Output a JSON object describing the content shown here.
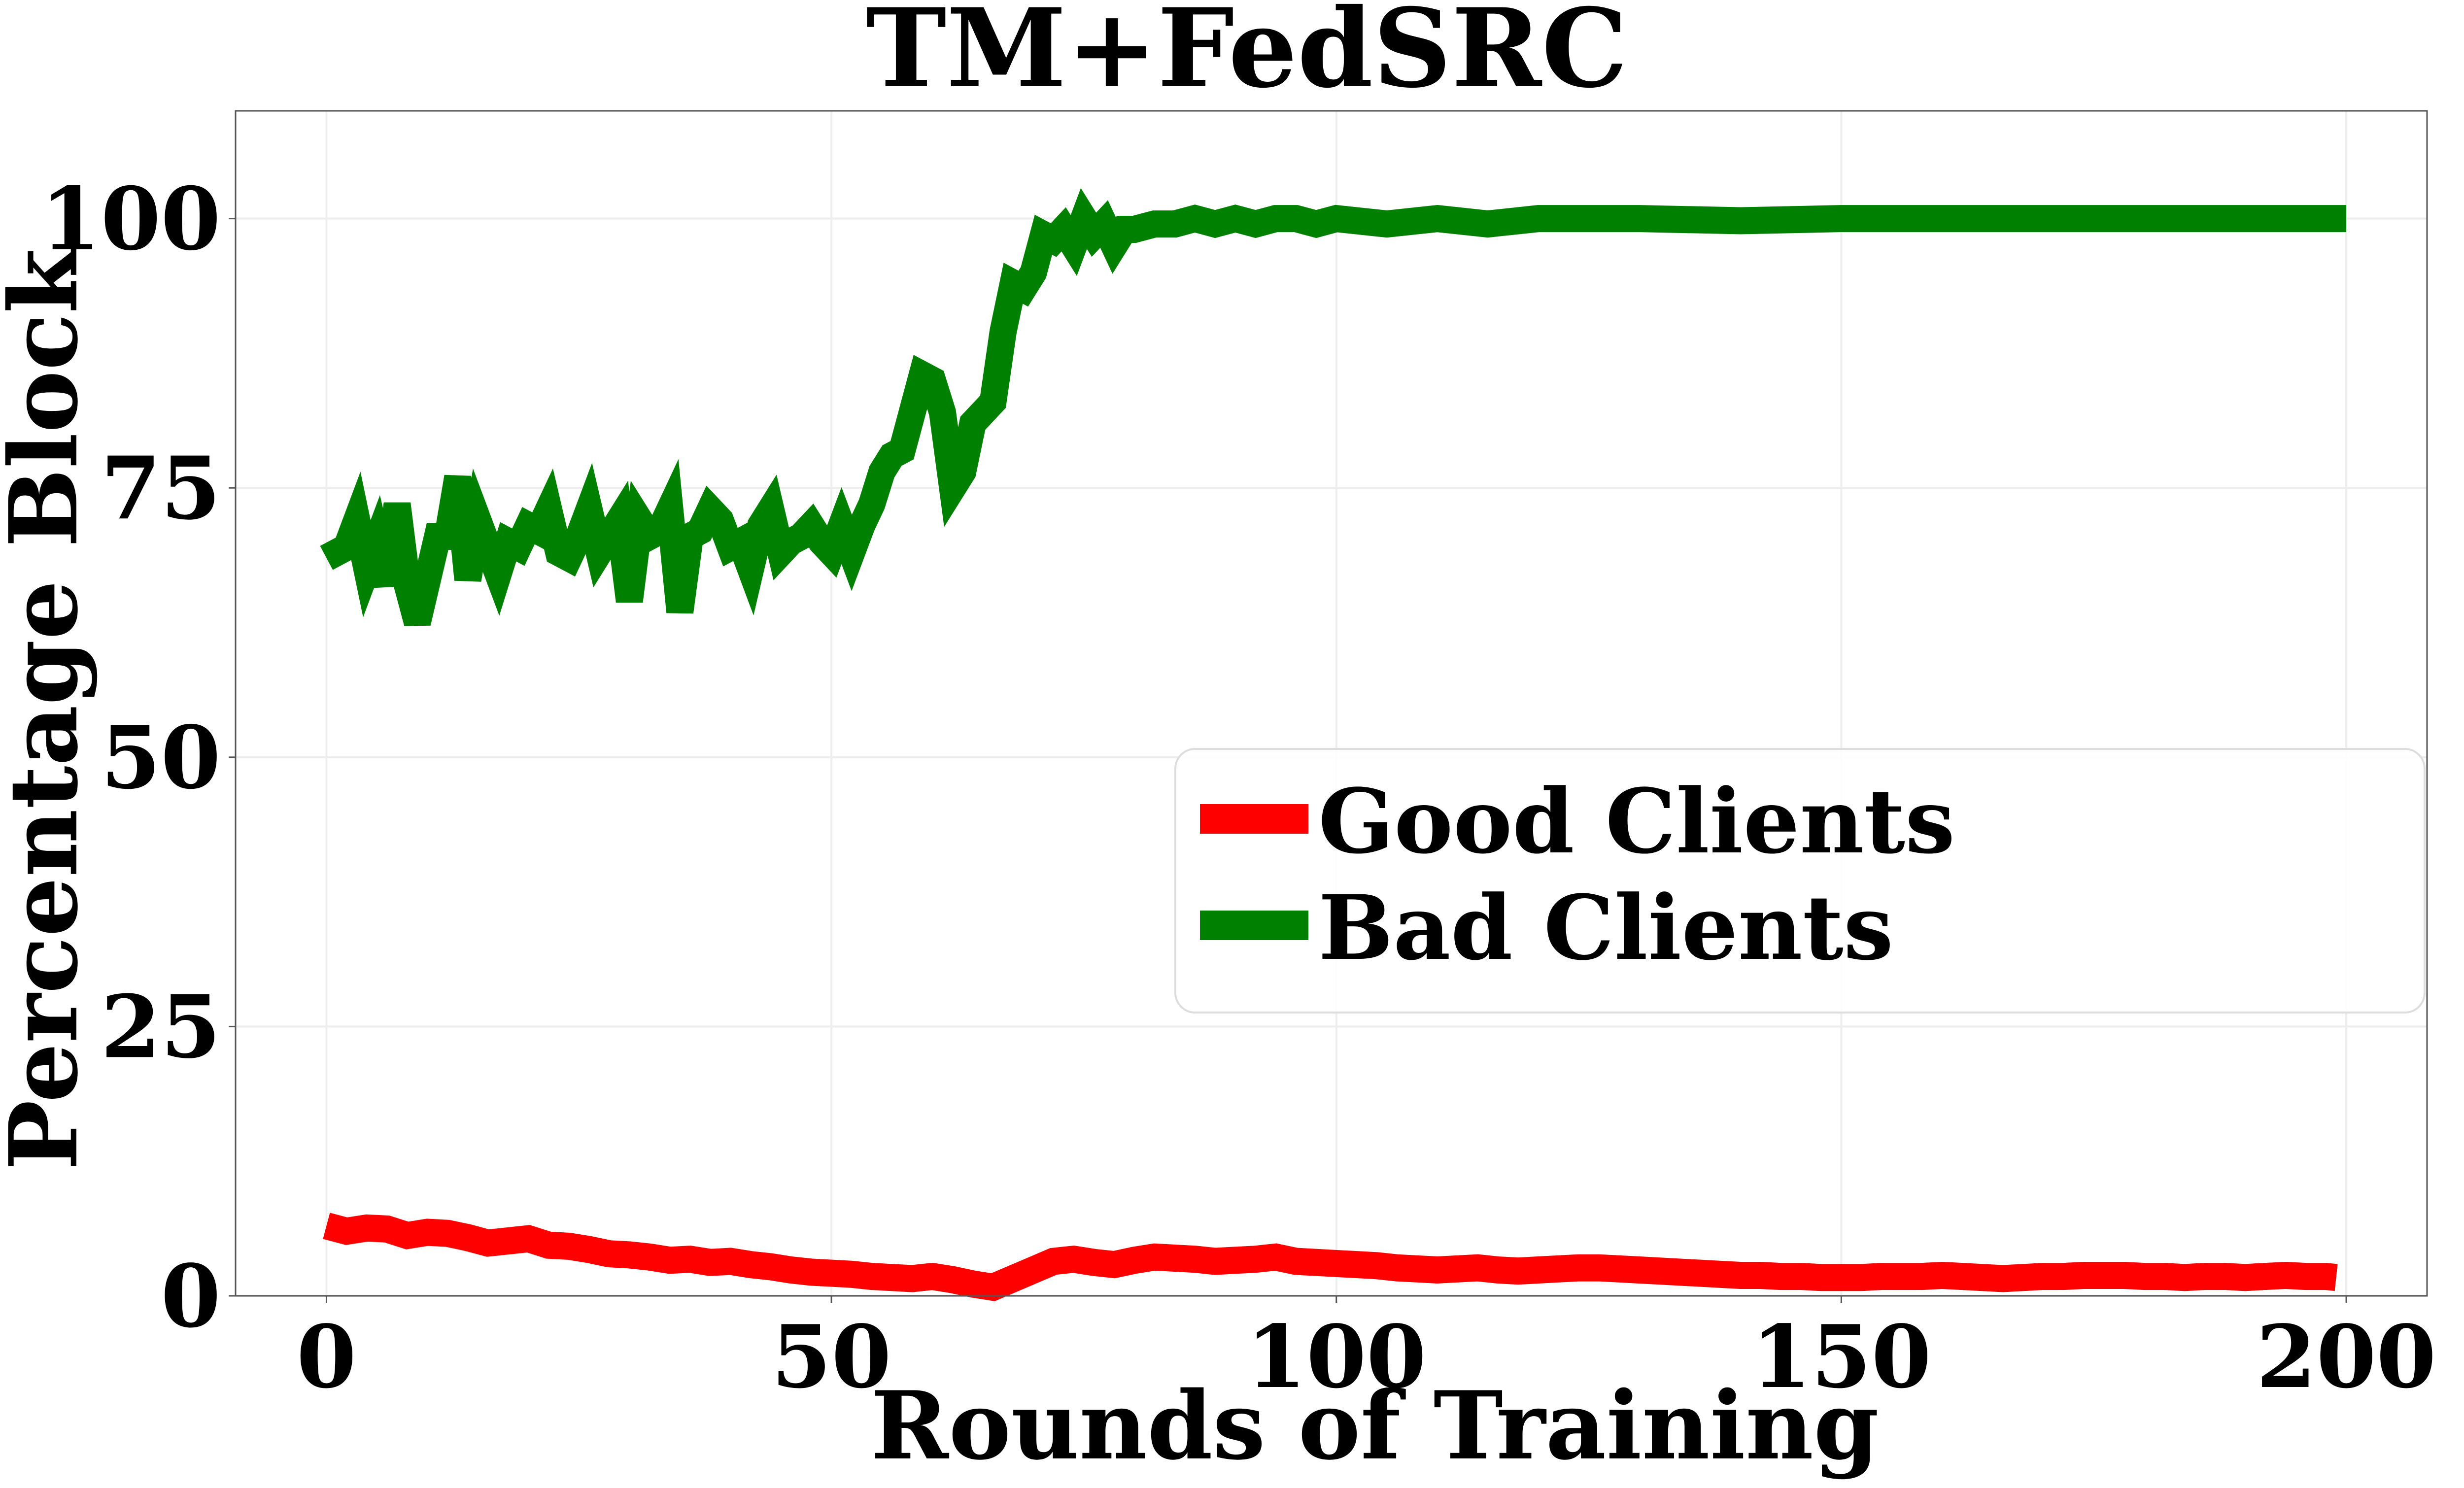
{
  "chart_data": {
    "type": "line",
    "title": "TM+FedSRC",
    "xlabel": "Rounds of Training",
    "ylabel": "Percentage Block",
    "xlim": [
      -9,
      208
    ],
    "ylim": [
      0,
      110
    ],
    "xticks": [
      0,
      50,
      100,
      150,
      200
    ],
    "yticks": [
      0,
      25,
      50,
      75,
      100
    ],
    "grid": true,
    "legend_position": "center-right",
    "series": [
      {
        "name": "Good Clients",
        "color": "#ff0000",
        "x": [
          0,
          2,
          4,
          6,
          8,
          10,
          12,
          14,
          16,
          18,
          20,
          22,
          24,
          26,
          28,
          30,
          32,
          34,
          36,
          38,
          40,
          42,
          44,
          46,
          48,
          50,
          52,
          54,
          56,
          58,
          60,
          62,
          64,
          66,
          68,
          70,
          72,
          74,
          76,
          78,
          80,
          82,
          84,
          86,
          88,
          90,
          92,
          94,
          96,
          98,
          100,
          102,
          104,
          106,
          108,
          110,
          112,
          114,
          116,
          118,
          120,
          122,
          124,
          126,
          128,
          130,
          132,
          134,
          136,
          138,
          140,
          142,
          144,
          146,
          148,
          150,
          152,
          154,
          156,
          158,
          160,
          162,
          164,
          166,
          168,
          170,
          172,
          174,
          176,
          178,
          180,
          182,
          184,
          186,
          188,
          190,
          192,
          194,
          196,
          198,
          199
        ],
        "values": [
          6.5,
          6.0,
          6.3,
          6.2,
          5.6,
          5.9,
          5.8,
          5.4,
          4.9,
          5.1,
          5.3,
          4.7,
          4.6,
          4.3,
          3.9,
          3.8,
          3.6,
          3.3,
          3.4,
          3.1,
          3.2,
          2.9,
          2.7,
          2.4,
          2.2,
          2.1,
          2.0,
          1.8,
          1.7,
          1.6,
          1.8,
          1.5,
          1.1,
          0.8,
          1.6,
          2.4,
          3.2,
          3.4,
          3.1,
          2.9,
          3.3,
          3.6,
          3.5,
          3.4,
          3.2,
          3.3,
          3.4,
          3.6,
          3.2,
          3.1,
          3.0,
          2.9,
          2.8,
          2.6,
          2.5,
          2.4,
          2.5,
          2.6,
          2.4,
          2.3,
          2.4,
          2.5,
          2.6,
          2.6,
          2.5,
          2.4,
          2.3,
          2.2,
          2.1,
          2.0,
          1.9,
          1.9,
          1.8,
          1.8,
          1.7,
          1.7,
          1.7,
          1.8,
          1.8,
          1.8,
          1.9,
          1.8,
          1.7,
          1.6,
          1.7,
          1.8,
          1.8,
          1.9,
          1.9,
          1.9,
          1.8,
          1.8,
          1.7,
          1.8,
          1.8,
          1.7,
          1.8,
          1.9,
          1.8,
          1.8,
          1.7
        ]
      },
      {
        "name": "Bad Clients",
        "color": "#008000",
        "x": [
          0,
          2,
          3,
          4,
          5,
          6,
          7,
          8,
          9,
          10,
          11,
          12,
          13,
          14,
          15,
          16,
          17,
          18,
          19,
          20,
          21,
          22,
          23,
          24,
          25,
          26,
          27,
          28,
          29,
          30,
          31,
          32,
          33,
          34,
          35,
          36,
          37,
          38,
          39,
          40,
          41,
          42,
          43,
          44,
          45,
          46,
          47,
          48,
          49,
          50,
          51,
          52,
          53,
          54,
          55,
          56,
          57,
          58,
          59,
          60,
          61,
          62,
          63,
          64,
          65,
          66,
          67,
          68,
          69,
          70,
          71,
          72,
          73,
          74,
          75,
          76,
          77,
          78,
          79,
          80,
          82,
          84,
          86,
          88,
          90,
          92,
          94,
          96,
          98,
          100,
          105,
          110,
          115,
          120,
          130,
          140,
          150,
          160,
          170,
          180,
          190,
          200
        ],
        "values": [
          68.5,
          69.5,
          72.0,
          67.5,
          70.0,
          66.0,
          73.5,
          66.0,
          62.5,
          66.5,
          70.5,
          70.5,
          76.0,
          66.5,
          72.0,
          69.5,
          67.0,
          70.0,
          69.5,
          71.5,
          71.0,
          73.0,
          69.0,
          68.5,
          70.5,
          73.0,
          69.0,
          70.5,
          72.0,
          64.5,
          72.0,
          70.5,
          71.0,
          73.0,
          63.5,
          70.5,
          71.0,
          73.0,
          72.0,
          69.5,
          70.0,
          67.5,
          71.5,
          73.0,
          69.0,
          70.0,
          70.5,
          71.5,
          70.0,
          69.0,
          71.5,
          69.0,
          71.5,
          73.5,
          76.5,
          78.0,
          78.5,
          82.0,
          85.5,
          85.0,
          82.0,
          75.0,
          76.5,
          81.0,
          82.0,
          83.0,
          89.5,
          94.0,
          93.5,
          95.0,
          98.5,
          98.0,
          99.0,
          97.5,
          100.0,
          98.5,
          99.5,
          97.5,
          99.0,
          99.0,
          99.5,
          99.5,
          100.0,
          99.5,
          100.0,
          99.5,
          100.0,
          100.0,
          99.5,
          100.0,
          99.5,
          100.0,
          99.5,
          100.0,
          100.0,
          99.8,
          100.0,
          100.0,
          100.0,
          100.0,
          100.0,
          100.0
        ]
      }
    ]
  }
}
